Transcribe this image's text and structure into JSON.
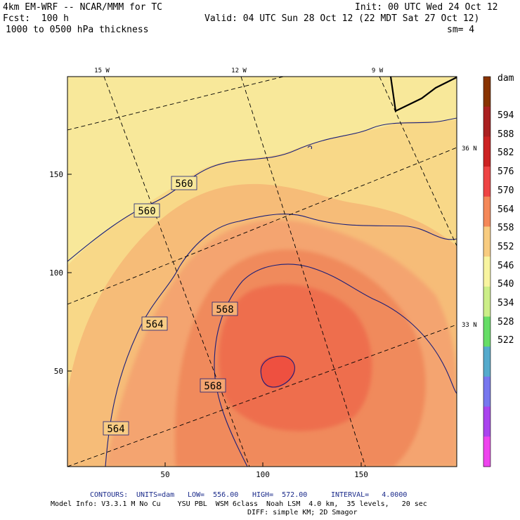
{
  "header": {
    "model_line": "4km EM-WRF -- NCAR/MMM for TC",
    "init_line": "Init: 00 UTC Wed 24 Oct 12",
    "fcst_line": "Fcst:  100 h",
    "valid_line": "Valid: 04 UTC Sun 28 Oct 12 (22 MDT Sat 27 Oct 12)",
    "field_line": "1000 to 0500 hPa thickness",
    "smooth_line": "sm= 4"
  },
  "map": {
    "lon_labels": [
      "15 W",
      "12 W",
      "9 W"
    ],
    "lat_labels": [
      "36 N",
      "33 N"
    ],
    "y_ticks": [
      "150",
      "100",
      "50"
    ],
    "x_ticks": [
      "50",
      "100",
      "150"
    ],
    "contour_labels": [
      "560",
      "560",
      "568",
      "564",
      "568",
      "564"
    ]
  },
  "colorbar": {
    "unit": "dam",
    "levels": [
      "594",
      "588",
      "582",
      "576",
      "570",
      "564",
      "558",
      "552",
      "546",
      "540",
      "534",
      "528",
      "522"
    ],
    "colors": {
      "c522": "#ee44ee",
      "c528": "#aa44ee",
      "c534": "#7777ee",
      "c540": "#55aacc",
      "c546": "#66dd66",
      "c552": "#ccee88",
      "c558": "#f8f4a0",
      "c564": "#f8cc80",
      "c570": "#f48858",
      "c576": "#ee4444",
      "c582": "#cc2222",
      "c588": "#aa2020",
      "c594": "#883300"
    }
  },
  "footer": {
    "contours_label": "CONTOURS:",
    "units": "UNITS=dam",
    "low": "LOW=  556.00",
    "high": "HIGH=  572.00",
    "interval": "INTERVAL=   4.0000",
    "model_info": "Model Info: V3.3.1 M No Cu    YSU PBL  WSM 6class  Noah LSM  4.0 km,  35 levels,   20 sec",
    "diff_info": "DIFF: simple KM; 2D Smagor"
  }
}
